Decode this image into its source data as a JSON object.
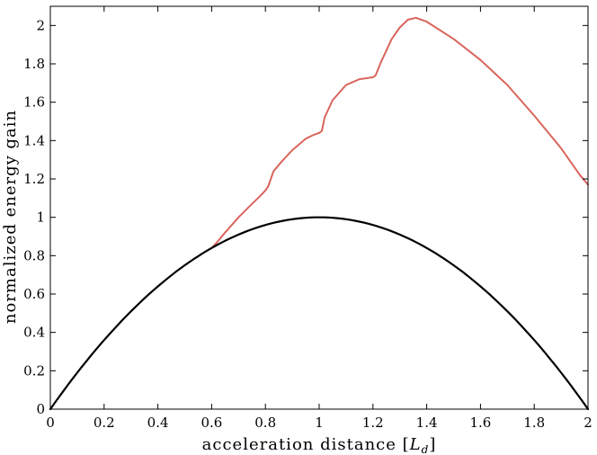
{
  "chart_data": {
    "type": "line",
    "title": "",
    "xlabel": "acceleration distance",
    "xlabel_unit_base": "L",
    "xlabel_unit_sub": "d",
    "ylabel": "normalized energy gain",
    "xlim": [
      0,
      2
    ],
    "ylim": [
      0,
      2.1
    ],
    "grid": false,
    "legend": "none",
    "x_ticks": [
      "0",
      "0.2",
      "0.4",
      "0.6",
      "0.8",
      "1",
      "1.2",
      "1.4",
      "1.6",
      "1.8",
      "2"
    ],
    "y_ticks": [
      "0",
      "0.2",
      "0.4",
      "0.6",
      "0.8",
      "1",
      "1.2",
      "1.4",
      "1.6",
      "1.8",
      "2"
    ],
    "series": [
      {
        "color": "#d9655c",
        "points": [
          [
            0.6,
            0.84
          ],
          [
            0.62,
            0.87
          ],
          [
            0.65,
            0.92
          ],
          [
            0.7,
            1.0
          ],
          [
            0.75,
            1.07
          ],
          [
            0.78,
            1.11
          ],
          [
            0.8,
            1.14
          ],
          [
            0.81,
            1.16
          ],
          [
            0.83,
            1.24
          ],
          [
            0.86,
            1.29
          ],
          [
            0.9,
            1.35
          ],
          [
            0.95,
            1.41
          ],
          [
            0.98,
            1.43
          ],
          [
            1.0,
            1.44
          ],
          [
            1.01,
            1.45
          ],
          [
            1.02,
            1.52
          ],
          [
            1.05,
            1.61
          ],
          [
            1.1,
            1.69
          ],
          [
            1.15,
            1.72
          ],
          [
            1.2,
            1.73
          ],
          [
            1.21,
            1.74
          ],
          [
            1.23,
            1.81
          ],
          [
            1.27,
            1.93
          ],
          [
            1.3,
            1.99
          ],
          [
            1.33,
            2.03
          ],
          [
            1.36,
            2.04
          ],
          [
            1.4,
            2.02
          ],
          [
            1.5,
            1.93
          ],
          [
            1.6,
            1.82
          ],
          [
            1.7,
            1.69
          ],
          [
            1.8,
            1.53
          ],
          [
            1.9,
            1.36
          ],
          [
            1.97,
            1.22
          ],
          [
            2.0,
            1.17
          ]
        ]
      },
      {
        "color": "#000000",
        "function": "x*(2-x)",
        "samples": 121
      }
    ]
  }
}
